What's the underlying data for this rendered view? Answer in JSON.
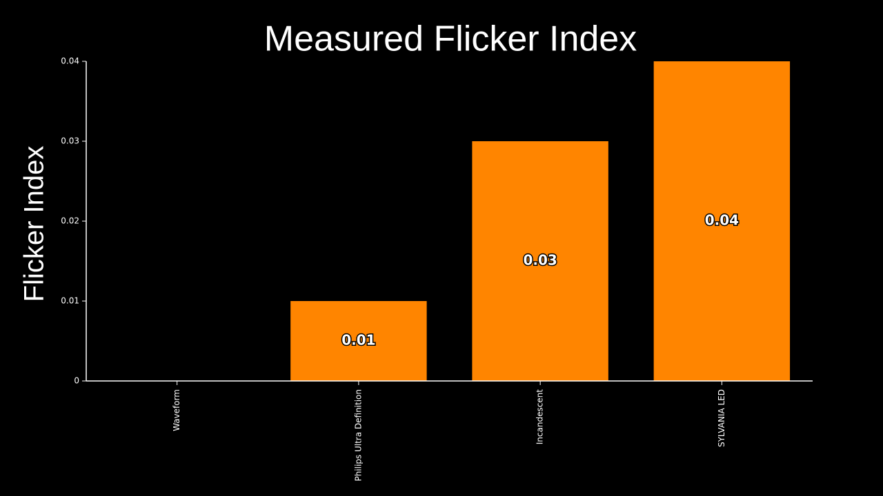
{
  "chart_data": {
    "type": "bar",
    "title": "Measured Flicker Index",
    "y_label": "Flicker Index",
    "categories": [
      "Waveform",
      "Philips Ultra Definition",
      "Incandescent",
      "SYLVANIA LED"
    ],
    "values": [
      null,
      0.01,
      0.03,
      0.04
    ],
    "color": "#ff8500",
    "ylim": [
      0,
      0.04
    ],
    "yticks": [
      0,
      0.01,
      0.02,
      0.03,
      0.04
    ],
    "grid": false
  }
}
